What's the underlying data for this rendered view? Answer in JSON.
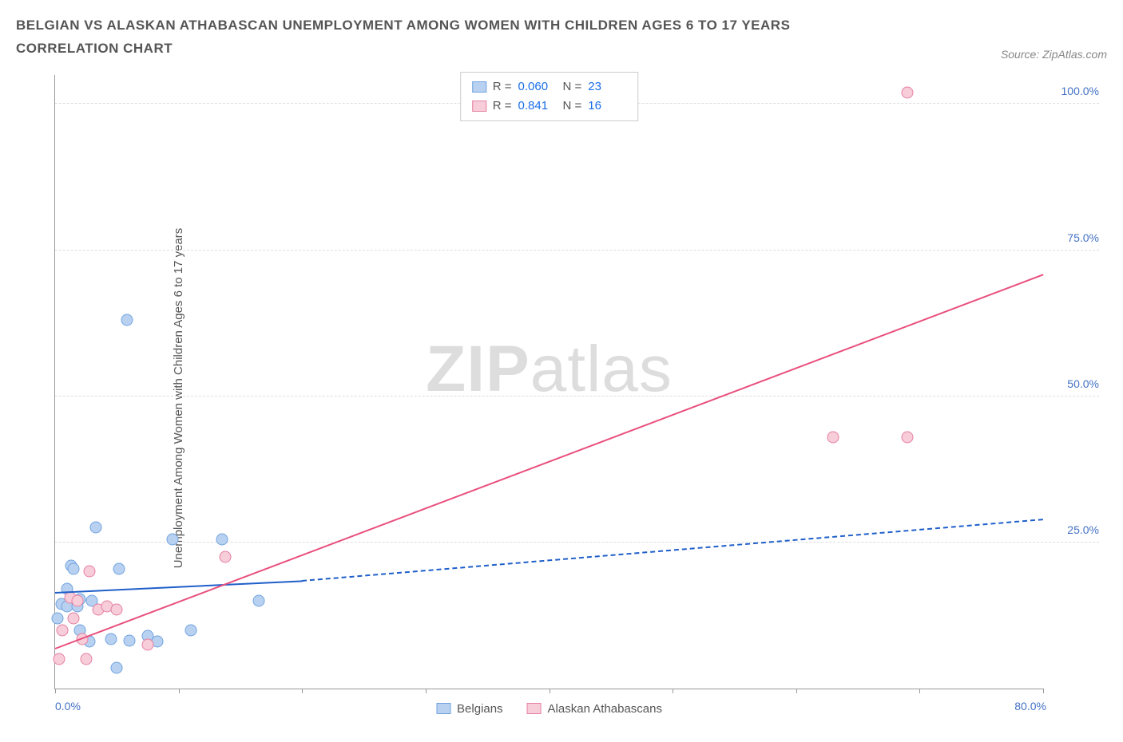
{
  "title": "BELGIAN VS ALASKAN ATHABASCAN UNEMPLOYMENT AMONG WOMEN WITH CHILDREN AGES 6 TO 17 YEARS CORRELATION CHART",
  "source": "Source: ZipAtlas.com",
  "ylabel": "Unemployment Among Women with Children Ages 6 to 17 years",
  "watermark_bold": "ZIP",
  "watermark_rest": "atlas",
  "chart": {
    "type": "scatter",
    "background_color": "#ffffff",
    "grid_color": "#dddddd",
    "axis_color": "#999999",
    "tick_label_color": "#4472c4",
    "xlim": [
      0,
      80
    ],
    "ylim": [
      0,
      105
    ],
    "x_ticks": [
      0,
      10,
      20,
      30,
      40,
      50,
      60,
      70,
      80
    ],
    "x_tick_labels": [
      "0.0%",
      "",
      "",
      "",
      "",
      "",
      "",
      "",
      "80.0%"
    ],
    "y_gridlines": [
      25,
      50,
      75,
      100
    ],
    "y_tick_labels": [
      "25.0%",
      "50.0%",
      "75.0%",
      "100.0%"
    ],
    "marker_size": 15,
    "marker_stroke": 1.5,
    "series": [
      {
        "name": "Belgians",
        "color_fill": "#b9d1f0",
        "color_stroke": "#6fa3e0",
        "R": "0.060",
        "N": "23",
        "trend": {
          "x1": 0,
          "y1": 16.5,
          "x2": 20,
          "y2": 18.5,
          "dash_after_x": 20,
          "x2_dash": 80,
          "y2_dash": 29,
          "stroke": "#1f5fc9",
          "width": 2.2
        },
        "points": [
          {
            "x": 0.2,
            "y": 12
          },
          {
            "x": 0.5,
            "y": 14.5
          },
          {
            "x": 1.0,
            "y": 14
          },
          {
            "x": 1.0,
            "y": 17
          },
          {
            "x": 1.3,
            "y": 21
          },
          {
            "x": 1.5,
            "y": 20.5
          },
          {
            "x": 1.8,
            "y": 14
          },
          {
            "x": 2.0,
            "y": 10
          },
          {
            "x": 2.0,
            "y": 15.2
          },
          {
            "x": 2.8,
            "y": 8
          },
          {
            "x": 3.0,
            "y": 15
          },
          {
            "x": 3.3,
            "y": 27.5
          },
          {
            "x": 4.5,
            "y": 8.5
          },
          {
            "x": 5.0,
            "y": 3.5
          },
          {
            "x": 5.2,
            "y": 20.5
          },
          {
            "x": 5.8,
            "y": 63
          },
          {
            "x": 6.0,
            "y": 8.2
          },
          {
            "x": 7.5,
            "y": 9
          },
          {
            "x": 8.3,
            "y": 8
          },
          {
            "x": 9.5,
            "y": 25.5
          },
          {
            "x": 11.0,
            "y": 10
          },
          {
            "x": 13.5,
            "y": 25.5
          },
          {
            "x": 16.5,
            "y": 15
          }
        ]
      },
      {
        "name": "Alaskan Athabascans",
        "color_fill": "#f6cdd9",
        "color_stroke": "#e67fa3",
        "R": "0.841",
        "N": "16",
        "trend": {
          "x1": 0,
          "y1": 7,
          "x2": 80,
          "y2": 71,
          "stroke": "#e94f7c",
          "width": 2.4
        },
        "points": [
          {
            "x": 0.3,
            "y": 5
          },
          {
            "x": 0.6,
            "y": 10
          },
          {
            "x": 1.2,
            "y": 15.5
          },
          {
            "x": 1.5,
            "y": 12
          },
          {
            "x": 1.8,
            "y": 15
          },
          {
            "x": 2.2,
            "y": 8.5
          },
          {
            "x": 2.5,
            "y": 5
          },
          {
            "x": 2.8,
            "y": 20
          },
          {
            "x": 3.5,
            "y": 13.5
          },
          {
            "x": 4.2,
            "y": 14
          },
          {
            "x": 5.0,
            "y": 13.5
          },
          {
            "x": 7.5,
            "y": 7.5
          },
          {
            "x": 13.8,
            "y": 22.5
          },
          {
            "x": 63.0,
            "y": 43
          },
          {
            "x": 69.0,
            "y": 43
          },
          {
            "x": 69.0,
            "y": 102
          }
        ]
      }
    ]
  },
  "legend_top": {
    "r_label": "R =",
    "n_label": "N ="
  },
  "legend_bottom": [
    "Belgians",
    "Alaskan Athabascans"
  ]
}
